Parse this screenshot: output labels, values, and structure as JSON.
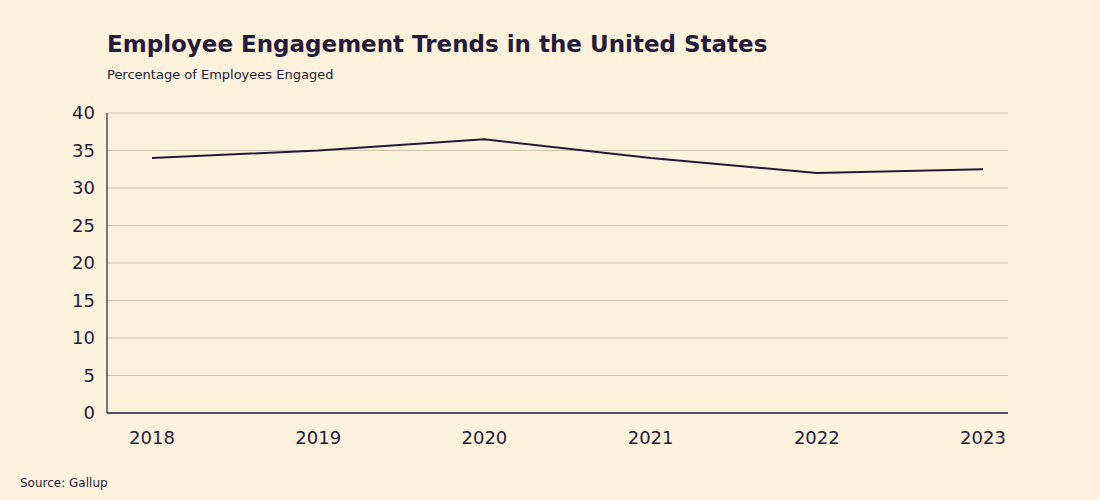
{
  "chart_data": {
    "type": "line",
    "title": "Employee Engagement Trends in the United States",
    "subtitle": "Percentage of Employees Engaged",
    "source": "Source: Gallup",
    "categories": [
      "2018",
      "2019",
      "2020",
      "2021",
      "2022",
      "2023"
    ],
    "values": [
      34,
      35,
      36.5,
      34,
      32,
      32.5
    ],
    "color": "#241b3b",
    "ylim": [
      0,
      40
    ],
    "yticks": [
      0,
      5,
      10,
      15,
      20,
      25,
      30,
      35,
      40
    ],
    "grid": true
  }
}
